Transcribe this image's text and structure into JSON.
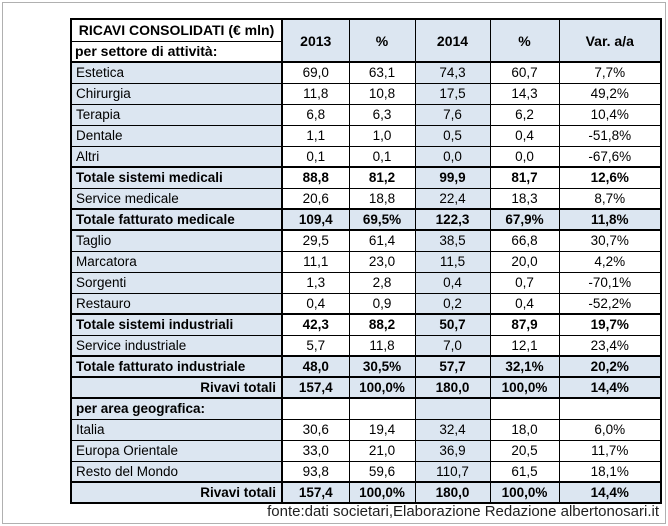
{
  "table": {
    "title": "RICAVI CONSOLIDATI (€ mln)",
    "subtitle": "per settore di attività:",
    "columns": [
      "2013",
      "%",
      "2014",
      "%",
      "Var. a/a"
    ],
    "col_keys": [
      "y2013",
      "pct2013",
      "y2014",
      "pct2014",
      "var-aa"
    ],
    "rows": [
      {
        "label": "Estetica",
        "values": [
          "69,0",
          "63,1",
          "74,3",
          "60,7",
          "7,7%"
        ],
        "style": "normal",
        "top_border": "thin"
      },
      {
        "label": "Chirurgia",
        "values": [
          "11,8",
          "10,8",
          "17,5",
          "14,3",
          "49,2%"
        ],
        "style": "normal",
        "top_border": "thin"
      },
      {
        "label": "Terapia",
        "values": [
          "6,8",
          "6,3",
          "7,6",
          "6,2",
          "10,4%"
        ],
        "style": "normal",
        "top_border": "thin"
      },
      {
        "label": "Dentale",
        "values": [
          "1,1",
          "1,0",
          "0,5",
          "0,4",
          "-51,8%"
        ],
        "style": "normal",
        "top_border": "thin"
      },
      {
        "label": "Altri",
        "values": [
          "0,1",
          "0,1",
          "0,0",
          "0,0",
          "-67,6%"
        ],
        "style": "normal",
        "top_border": "thin"
      },
      {
        "label": "Totale sistemi medicali",
        "values": [
          "88,8",
          "81,2",
          "99,9",
          "81,7",
          "12,6%"
        ],
        "style": "total-partial",
        "top_border": "medium"
      },
      {
        "label": "Service medicale",
        "values": [
          "20,6",
          "18,8",
          "22,4",
          "18,3",
          "8,7%"
        ],
        "style": "normal",
        "top_border": "thin"
      },
      {
        "label": "Totale fatturato medicale",
        "values": [
          "109,4",
          "69,5%",
          "122,3",
          "67,9%",
          "11,8%"
        ],
        "style": "total-full",
        "top_border": "medium"
      },
      {
        "label": "Taglio",
        "values": [
          "29,5",
          "61,4",
          "38,5",
          "66,8",
          "30,7%"
        ],
        "style": "normal",
        "top_border": "medium"
      },
      {
        "label": "Marcatora",
        "values": [
          "11,1",
          "23,0",
          "11,5",
          "20,0",
          "4,2%"
        ],
        "style": "normal",
        "top_border": "thin"
      },
      {
        "label": "Sorgenti",
        "values": [
          "1,3",
          "2,8",
          "0,4",
          "0,7",
          "-70,1%"
        ],
        "style": "normal",
        "top_border": "thin"
      },
      {
        "label": "Restauro",
        "values": [
          "0,4",
          "0,9",
          "0,2",
          "0,4",
          "-52,2%"
        ],
        "style": "normal",
        "top_border": "thin"
      },
      {
        "label": "Totale sistemi industriali",
        "values": [
          "42,3",
          "88,2",
          "50,7",
          "87,9",
          "19,7%"
        ],
        "style": "total-partial",
        "top_border": "medium"
      },
      {
        "label": "Service industriale",
        "values": [
          "5,7",
          "11,8",
          "7,0",
          "12,1",
          "23,4%"
        ],
        "style": "normal",
        "top_border": "thin"
      },
      {
        "label": "Totale fatturato industriale",
        "values": [
          "48,0",
          "30,5%",
          "57,7",
          "32,1%",
          "20,2%"
        ],
        "style": "total-full",
        "top_border": "medium"
      },
      {
        "label": "Rivavi totali",
        "values": [
          "157,4",
          "100,0%",
          "180,0",
          "100,0%",
          "14,4%"
        ],
        "style": "grand-total",
        "top_border": "medium"
      },
      {
        "label": "per area geografica:",
        "values": [
          "",
          "",
          "",
          "",
          ""
        ],
        "style": "section",
        "top_border": "medium"
      },
      {
        "label": "Italia",
        "values": [
          "30,6",
          "19,4",
          "32,4",
          "18,0",
          "6,0%"
        ],
        "style": "normal",
        "top_border": "thin"
      },
      {
        "label": "Europa Orientale",
        "values": [
          "33,0",
          "21,0",
          "36,9",
          "20,5",
          "11,7%"
        ],
        "style": "normal",
        "top_border": "thin"
      },
      {
        "label": "Resto del Mondo",
        "values": [
          "93,8",
          "59,6",
          "110,7",
          "61,5",
          "18,1%"
        ],
        "style": "normal",
        "top_border": "thin"
      },
      {
        "label": "Rivavi totali",
        "values": [
          "157,4",
          "100,0%",
          "180,0",
          "100,0%",
          "14,4%"
        ],
        "style": "grand-total",
        "top_border": "medium"
      }
    ]
  },
  "footer": {
    "source": "fonte:dati societari,Elaborazione Redazione albertonosari.it"
  },
  "colors": {
    "cell_blue": "#dce6f1",
    "table_border": "#000000",
    "frame_gray": "#b0b0b0",
    "footer_text": "#1f1f1f"
  }
}
